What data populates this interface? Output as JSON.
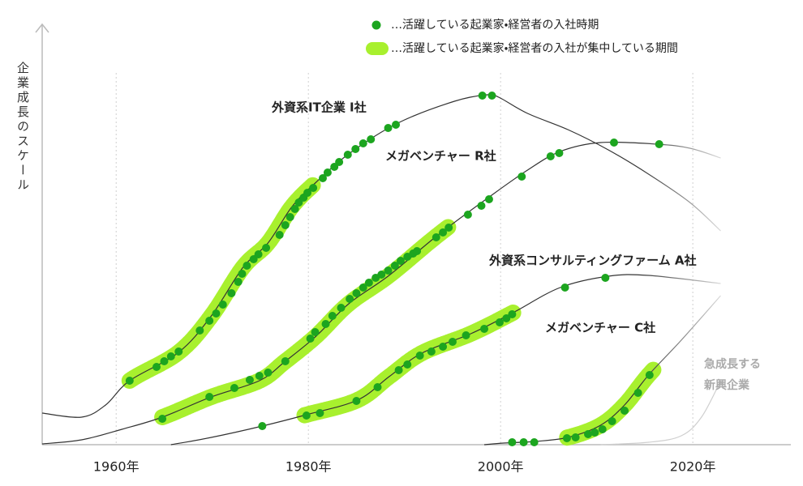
{
  "chart_data": {
    "type": "line",
    "y_label": "企業成長のスケール",
    "xlim": [
      1952.3,
      2030.2
    ],
    "ylim": [
      0,
      100
    ],
    "xticks": [
      {
        "value": 1960,
        "label": "1960年"
      },
      {
        "value": 1980,
        "label": "1980年"
      },
      {
        "value": 2000,
        "label": "2000年"
      },
      {
        "value": 2020,
        "label": "2020年"
      }
    ],
    "grid": true,
    "dot_color": "#1ca51f",
    "focus_color": "#a8f02e",
    "legend": [
      {
        "marker": "dot",
        "text": "…活躍している起業家・経営者の入社時期"
      },
      {
        "marker": "band",
        "text": "…活躍している起業家・経営者の入社が集中している期間"
      }
    ],
    "series": [
      {
        "name": "外資系IT企業 I社",
        "color": "#333333",
        "x": [
          1952.3,
          1956.4,
          1958.9,
          1961.4,
          1966.5,
          1969.9,
          1973.2,
          1975.8,
          1978.3,
          1980.8,
          1984.2,
          1989.3,
          1995.2,
          1998.6,
          1999.8,
          2002.8,
          2007.0,
          2011.2,
          2015.4,
          2019.7,
          2022.9
        ],
        "values": [
          7.8,
          6.8,
          9.8,
          15.8,
          22.8,
          31.8,
          43.8,
          49.8,
          58.8,
          64.8,
          71.8,
          79.4,
          84.8,
          86.4,
          85.8,
          81.8,
          77.8,
          72.8,
          66.8,
          59.8,
          52.8
        ],
        "hires_x": [
          1961.4,
          1964.2,
          1965.0,
          1965.7,
          1966.5,
          1968.7,
          1969.7,
          1970.4,
          1971.1,
          1972.0,
          1972.7,
          1973.1,
          1973.6,
          1974.3,
          1974.8,
          1975.6,
          1977.0,
          1977.6,
          1978.1,
          1978.6,
          1979.0,
          1979.5,
          1979.9,
          1980.5,
          1981.5,
          1982.0,
          1982.7,
          1983.2,
          1984.1,
          1984.9,
          1985.7,
          1986.5,
          1988.3,
          1989.1,
          1998.1,
          1999.1
        ],
        "hires_values": [
          15.8,
          19.2,
          20.6,
          21.8,
          23,
          28.2,
          30.6,
          32.4,
          34.6,
          37.4,
          40.2,
          42.2,
          44.2,
          45.8,
          47,
          48.6,
          51.8,
          54.2,
          56.2,
          58.2,
          59.8,
          61,
          62.2,
          63.4,
          65.8,
          67.2,
          68.6,
          69.8,
          71.6,
          73,
          74.4,
          75.4,
          78.2,
          79,
          86.2,
          86.2
        ],
        "focus": [
          1961.4,
          1980.5
        ]
      },
      {
        "name": "メガベンチャー R社",
        "color": "#333333",
        "x": [
          1952.3,
          1956.4,
          1960.6,
          1964.8,
          1969.9,
          1974.9,
          1977.5,
          1980.8,
          1984.2,
          1988.4,
          1993.5,
          1998.6,
          2002.8,
          2006.2,
          2010.4,
          2016.3,
          2019.7,
          2022.9
        ],
        "values": [
          0.2,
          1.2,
          3.8,
          6.8,
          11.8,
          15.8,
          20.4,
          26.8,
          34.8,
          41.8,
          51.8,
          60.8,
          67.8,
          72.4,
          74.6,
          74.2,
          73.2,
          70.8
        ],
        "hires_x": [
          1964.8,
          1969.7,
          1972.3,
          1973.9,
          1974.9,
          1975.8,
          1977.6,
          1980.2,
          1980.7,
          1981.8,
          1982.5,
          1983.4,
          1984.3,
          1985.0,
          1985.7,
          1986.3,
          1987.0,
          1987.6,
          1988.3,
          1989.0,
          1989.6,
          1990.3,
          1990.9,
          1991.3,
          1993.3,
          1994.0,
          1994.6,
          1996.6,
          1998.0,
          1998.8,
          2002.2,
          2005.2,
          2006.1,
          2011.8,
          2016.5
        ],
        "hires_values": [
          6.4,
          11.8,
          14,
          16,
          17,
          17.8,
          20.6,
          26.2,
          27.8,
          29.8,
          31.8,
          33.8,
          36,
          37.4,
          38.8,
          40,
          41.2,
          42,
          43,
          44.2,
          45.4,
          46.4,
          47.2,
          47.8,
          51.2,
          52.4,
          53.6,
          56.8,
          59,
          60.6,
          66.2,
          71.2,
          72,
          74.6,
          74.2
        ],
        "focus": [
          1964.8,
          1994.6
        ]
      },
      {
        "name": "外資系コンサルティングファーム A社",
        "color": "#333333",
        "x": [
          1965.7,
          1969.9,
          1975.2,
          1979.8,
          1985.1,
          1988.4,
          1991.8,
          1996.9,
          2001.3,
          2006.2,
          2011.2,
          2015.4,
          2022.9
        ],
        "values": [
          0,
          1.8,
          4.6,
          7.4,
          11,
          16.8,
          22.6,
          27.4,
          32.6,
          38.8,
          41.6,
          41.8,
          39.8
        ],
        "hires_x": [
          1975.2,
          1979.8,
          1981.2,
          1985.0,
          1987.2,
          1989.4,
          1990.3,
          1991.6,
          1992.8,
          1994.0,
          1995.0,
          1996.4,
          1998.3,
          1999.9,
          2000.6,
          2001.2,
          2006.7,
          2010.9
        ],
        "hires_values": [
          4.6,
          7.2,
          7.8,
          10.8,
          14.2,
          18.4,
          19.8,
          22,
          23,
          24.2,
          25.4,
          27,
          28.6,
          30.2,
          31.2,
          32.2,
          38.8,
          41.2
        ],
        "focus": [
          1979.6,
          2001.3
        ]
      },
      {
        "name": "メガベンチャー C社",
        "color": "#333333",
        "x": [
          1998.3,
          2000.3,
          2003.6,
          2007.0,
          2010.4,
          2012.9,
          2015.4,
          2018.8,
          2022.9
        ],
        "values": [
          0,
          0.4,
          0.8,
          1.8,
          4.8,
          9.8,
          17.2,
          25.8,
          36.8
        ],
        "hires_x": [
          2001.2,
          2002.4,
          2003.5,
          2006.9,
          2007.8,
          2009.1,
          2009.8,
          2010.6,
          2011.6,
          2012.9,
          2014.3,
          2015.5
        ],
        "hires_values": [
          0.6,
          0.6,
          0.6,
          1.6,
          1.8,
          2.6,
          3,
          3.8,
          5.8,
          8.4,
          12.8,
          17.2
        ],
        "focus": [
          2006.9,
          2015.9
        ]
      },
      {
        "name_lines": [
          "急成長する",
          "新興企業"
        ],
        "color": "#cfcfcf",
        "x": [
          2010.4,
          2015.4,
          2018.8,
          2020.9,
          2022.9
        ],
        "values": [
          0,
          0.6,
          2.2,
          6.8,
          15.8
        ]
      }
    ]
  }
}
